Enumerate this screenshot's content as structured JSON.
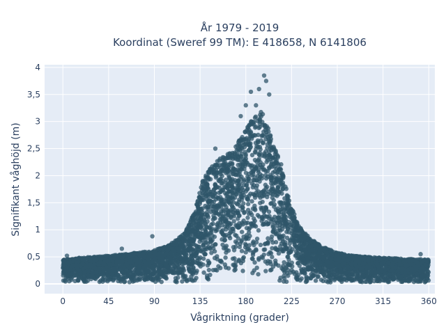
{
  "chart_data": {
    "type": "scatter",
    "title": {
      "line1": "År 1979 - 2019",
      "line2": "Koordinat (Sweref 99 TM): E 418658, N 6141806"
    },
    "xlabel": "Vågriktning (grader)",
    "ylabel": "Signifikant våghöjd (m)",
    "xlim": [
      -18,
      366
    ],
    "ylim": [
      -0.18,
      4.05
    ],
    "xticks": [
      0,
      45,
      90,
      135,
      180,
      225,
      270,
      315,
      360
    ],
    "xtick_labels": [
      "0",
      "45",
      "90",
      "135",
      "180",
      "225",
      "270",
      "315",
      "360"
    ],
    "yticks": [
      0,
      0.5,
      1,
      1.5,
      2,
      2.5,
      3,
      3.5,
      4
    ],
    "ytick_labels": [
      "0",
      "0,5",
      "1",
      "1,5",
      "2",
      "2,5",
      "3",
      "3,5",
      "4"
    ],
    "grid": true,
    "marker_color": "#2f5569",
    "plot_background": "#e5ecf6",
    "envelope": {
      "direction": [
        0,
        15,
        30,
        45,
        60,
        75,
        90,
        105,
        120,
        130,
        135,
        140,
        145,
        150,
        155,
        160,
        165,
        170,
        175,
        180,
        185,
        190,
        195,
        200,
        205,
        210,
        215,
        220,
        225,
        230,
        240,
        250,
        260,
        270,
        285,
        300,
        315,
        330,
        345,
        360
      ],
      "max_height": [
        0.45,
        0.48,
        0.5,
        0.52,
        0.55,
        0.58,
        0.62,
        0.72,
        0.95,
        1.35,
        1.75,
        2.05,
        2.15,
        2.25,
        2.35,
        2.4,
        2.45,
        2.55,
        2.7,
        2.85,
        3.0,
        3.1,
        3.2,
        3.05,
        2.7,
        2.45,
        2.2,
        1.75,
        1.45,
        1.15,
        0.9,
        0.75,
        0.65,
        0.58,
        0.52,
        0.5,
        0.48,
        0.47,
        0.46,
        0.45
      ]
    },
    "notable_points": [
      {
        "x": 198,
        "y": 3.85
      },
      {
        "x": 200,
        "y": 3.75
      },
      {
        "x": 193,
        "y": 3.6
      },
      {
        "x": 203,
        "y": 3.5
      },
      {
        "x": 185,
        "y": 3.55
      },
      {
        "x": 180,
        "y": 3.3
      },
      {
        "x": 175,
        "y": 3.1
      },
      {
        "x": 190,
        "y": 3.3
      },
      {
        "x": 150,
        "y": 2.5
      },
      {
        "x": 58,
        "y": 0.65
      },
      {
        "x": 88,
        "y": 0.88
      },
      {
        "x": 4,
        "y": 0.52
      },
      {
        "x": 352,
        "y": 0.55
      }
    ]
  }
}
